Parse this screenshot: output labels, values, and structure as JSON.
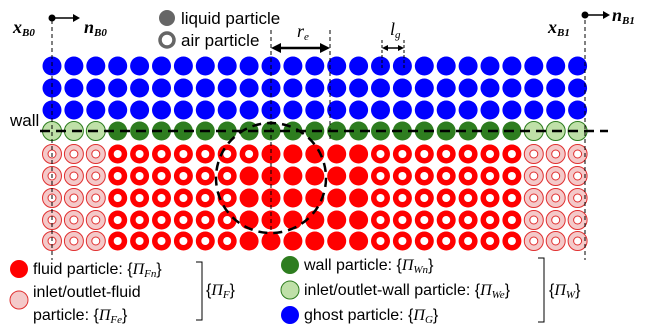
{
  "header": {
    "x_b0": "x",
    "x_b0_sub": "B0",
    "n_b0": "n",
    "n_b0_sub": "B0",
    "x_b1": "x",
    "x_b1_sub": "B1",
    "n_b1": "n",
    "n_b1_sub": "B1",
    "liquid_label": "liquid particle",
    "air_label": "air particle",
    "re_label": "r",
    "re_sub": "e",
    "lg_label": "l",
    "lg_sub": "g",
    "wall_label": "wall"
  },
  "colors": {
    "fluid": "#ff0000",
    "inlet_fluid": "#f4c9c9",
    "wall": "#2e7d1f",
    "inlet_wall": "#bfe0a8",
    "ghost": "#0000ff"
  },
  "legend": {
    "fluid": "fluid particle: {",
    "fluid_sym": "Π",
    "fluid_sub": "Fn",
    "fluid_end": "}",
    "inlet_fluid_1": "inlet/outlet-fluid",
    "inlet_fluid_2": "particle: {",
    "inlet_fluid_sym": "Π",
    "inlet_fluid_sub": "Fe",
    "inlet_fluid_end": "}",
    "group_f": "{",
    "group_f_sym": "Π",
    "group_f_sub": "F",
    "group_f_end": "}",
    "wall": "wall particle: {",
    "wall_sym": "Π",
    "wall_sub": "Wn",
    "wall_end": "}",
    "inlet_wall": "inlet/outlet-wall particle: {",
    "inlet_wall_sym": "Π",
    "inlet_wall_sub": "We",
    "inlet_wall_end": "}",
    "group_w": "{",
    "group_w_sym": "Π",
    "group_w_sub": "W",
    "group_w_end": "}",
    "ghost": "ghost particle: {",
    "ghost_sym": "Π",
    "ghost_sub": "G",
    "ghost_end": "}"
  }
}
